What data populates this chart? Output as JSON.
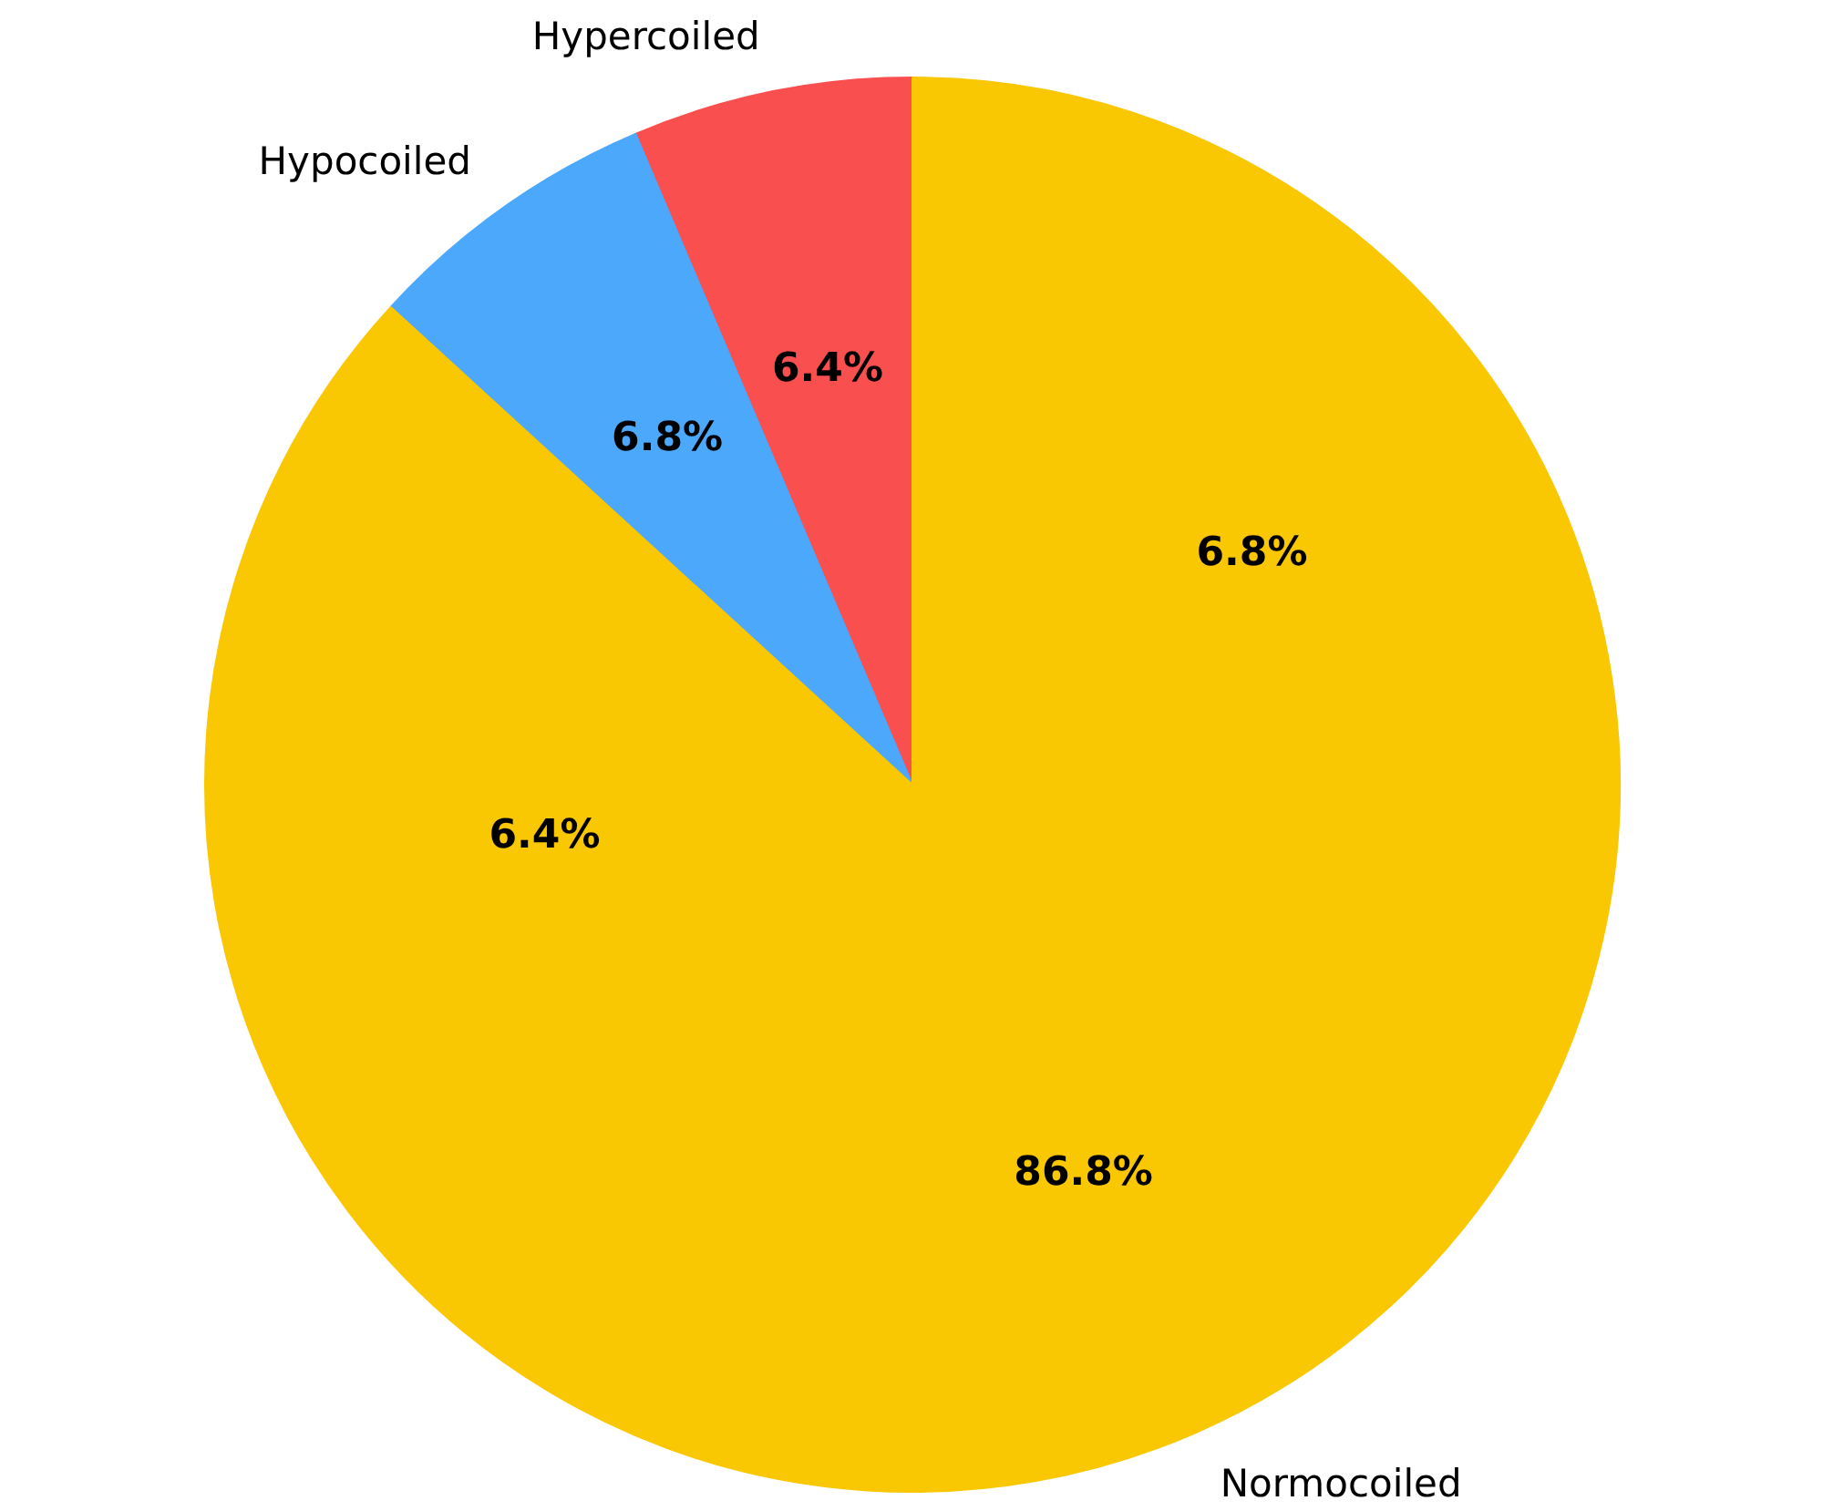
{
  "chart_data": {
    "type": "pie",
    "categories": [
      "Hypercoiled",
      "Hypocoiled",
      "Normocoiled"
    ],
    "values": [
      6.4,
      6.8,
      86.8
    ],
    "colors": [
      "#fa4f4f",
      "#4ca8fb",
      "#fac703"
    ],
    "value_labels": [
      "6.4%",
      "6.8%",
      "86.8%"
    ],
    "annotations": [
      "6.8%",
      "6.4%"
    ]
  }
}
